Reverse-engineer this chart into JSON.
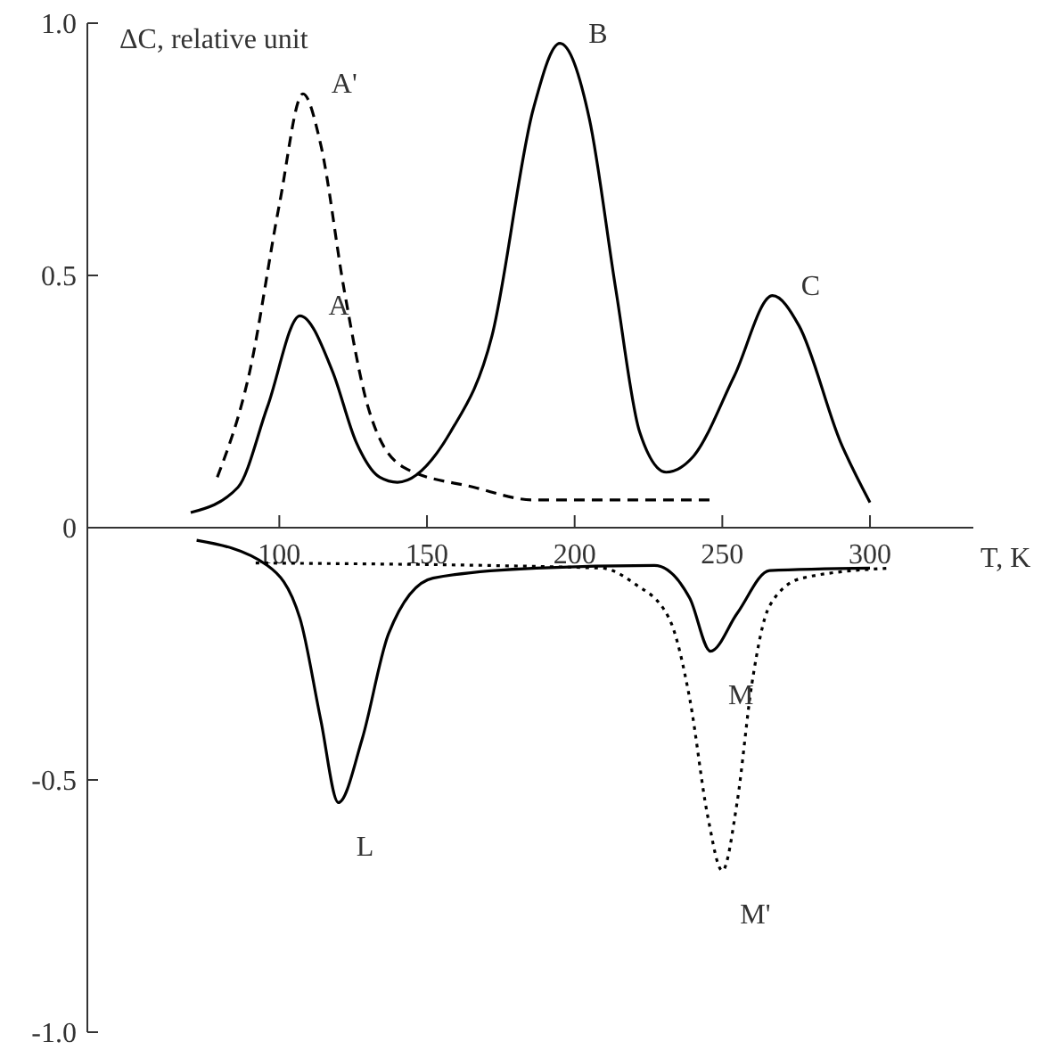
{
  "chart_data": {
    "type": "line",
    "xlabel": "T, K",
    "ylabel": "ΔC, relative unit",
    "xlim": [
      35,
      335
    ],
    "ylim": [
      -1.0,
      1.0
    ],
    "xticks": [
      100,
      150,
      200,
      250,
      300
    ],
    "yticks": [
      {
        "value": 1,
        "label": "1.0"
      },
      {
        "value": 0.5,
        "label": "0.5"
      },
      0,
      {
        "value": -0.5,
        "label": "-0.5"
      },
      {
        "value": -1,
        "label": "-1.0"
      }
    ],
    "grid": false,
    "marker": "none",
    "series": [
      {
        "color": "#000000",
        "line_style": "solid",
        "x": [
          70,
          86,
          96,
          107,
          118,
          126,
          134,
          140,
          158,
          172,
          186,
          195,
          205,
          214,
          222,
          231,
          240,
          254,
          267,
          276,
          290,
          300
        ],
        "values": [
          0.03,
          0.08,
          0.24,
          0.42,
          0.31,
          0.17,
          0.1,
          0.09,
          0.19,
          0.38,
          0.83,
          0.96,
          0.81,
          0.47,
          0.19,
          0.11,
          0.14,
          0.3,
          0.46,
          0.4,
          0.17,
          0.05
        ]
      },
      {
        "color": "#000000",
        "line_style": "dashed",
        "x": [
          79,
          90,
          100,
          108,
          114,
          122,
          130,
          142,
          166,
          186,
          246
        ],
        "values": [
          0.1,
          0.31,
          0.64,
          0.86,
          0.76,
          0.47,
          0.24,
          0.12,
          0.08,
          0.055,
          0.055
        ]
      },
      {
        "color": "#000000",
        "line_style": "solid",
        "x": [
          72,
          96,
          107,
          114,
          120,
          128,
          137,
          152,
          187,
          227,
          239,
          246,
          255,
          266,
          300
        ],
        "values": [
          -0.025,
          -0.075,
          -0.18,
          -0.38,
          -0.545,
          -0.42,
          -0.21,
          -0.1,
          -0.08,
          -0.075,
          -0.14,
          -0.245,
          -0.17,
          -0.085,
          -0.08
        ]
      },
      {
        "color": "#000000",
        "line_style": "dotted",
        "x": [
          92,
          209,
          220,
          232,
          239,
          245,
          250,
          255,
          260,
          266,
          277,
          307
        ],
        "values": [
          -0.07,
          -0.08,
          -0.11,
          -0.18,
          -0.34,
          -0.57,
          -0.68,
          -0.545,
          -0.31,
          -0.155,
          -0.1,
          -0.08
        ]
      }
    ],
    "annotations": [
      {
        "text": "A",
        "x": 107,
        "y": 0.42
      },
      {
        "text": "A'",
        "x": 108,
        "y": 0.86
      },
      {
        "text": "B",
        "x": 195,
        "y": 0.96
      },
      {
        "text": "C",
        "x": 267,
        "y": 0.46
      },
      {
        "text": "L",
        "x": 120,
        "y": -0.545
      },
      {
        "text": "M",
        "x": 246,
        "y": -0.245
      },
      {
        "text": "M'",
        "x": 250,
        "y": -0.68
      }
    ]
  }
}
